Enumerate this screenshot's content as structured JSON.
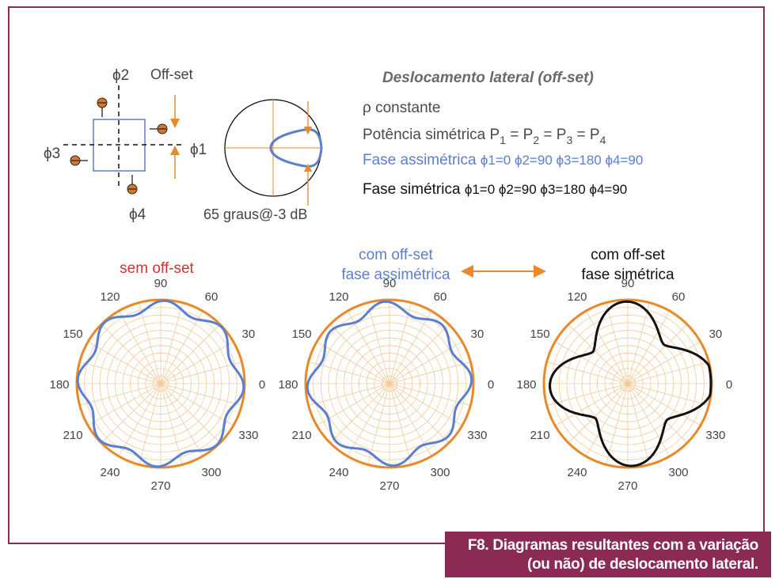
{
  "colors": {
    "frame": "#8a2a55",
    "orange": "#e8892a",
    "blue": "#5a7fd0",
    "red": "#d7312b",
    "black": "#111111",
    "grid": "#f3c99a"
  },
  "diagram": {
    "phi2": "ϕ2",
    "phi1": "ϕ1",
    "phi3": "ϕ3",
    "phi4": "ϕ4",
    "offset_label": "Off-set",
    "beam_label": "65 graus@-3 dB"
  },
  "text_block": {
    "title": "Deslocamento lateral (off-set)",
    "rho": "ρ constante",
    "power_base": "Potência simétrica P",
    "power_eq": " = P",
    "power_sub1": "1",
    "power_sub2": "2",
    "power_sub3": "3",
    "power_sub4": "4",
    "asym_label": "Fase assimétrica ",
    "asym_values": "ϕ1=0  ϕ2=90  ϕ3=180 ϕ4=90",
    "sym_label": "Fase simétrica ",
    "sym_values": "ϕ1=0 ϕ2=90 ϕ3=180 ϕ4=90"
  },
  "polar_titles": {
    "p1": "sem off-set",
    "p2_line1": "com off-set",
    "p2_line2": "fase assimétrica",
    "p3_line1": "com off-set",
    "p3_line2": "fase simétrica"
  },
  "angle_labels": [
    "0",
    "30",
    "60",
    "90",
    "120",
    "150",
    "180",
    "210",
    "240",
    "270",
    "300",
    "330"
  ],
  "caption": {
    "line1": "F8. Diagramas resultantes com a variação",
    "line2": "(ou não) de deslocamento lateral."
  }
}
